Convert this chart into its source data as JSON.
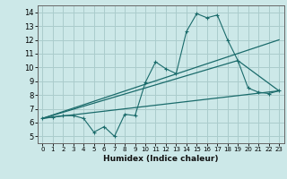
{
  "xlabel": "Humidex (Indice chaleur)",
  "bg_color": "#cce8e8",
  "grid_color": "#aacccc",
  "line_color": "#1a6b6b",
  "xlim": [
    -0.5,
    23.5
  ],
  "ylim": [
    4.5,
    14.5
  ],
  "xticks": [
    0,
    1,
    2,
    3,
    4,
    5,
    6,
    7,
    8,
    9,
    10,
    11,
    12,
    13,
    14,
    15,
    16,
    17,
    18,
    19,
    20,
    21,
    22,
    23
  ],
  "yticks": [
    5,
    6,
    7,
    8,
    9,
    10,
    11,
    12,
    13,
    14
  ],
  "series1_x": [
    0,
    1,
    2,
    3,
    4,
    5,
    6,
    7,
    8,
    9,
    10,
    11,
    12,
    13,
    14,
    15,
    16,
    17,
    18,
    19,
    20,
    21,
    22,
    23
  ],
  "series1_y": [
    6.3,
    6.4,
    6.5,
    6.5,
    6.3,
    5.3,
    5.7,
    5.0,
    6.6,
    6.5,
    8.9,
    10.4,
    9.9,
    9.55,
    12.6,
    13.9,
    13.6,
    13.8,
    12.0,
    10.5,
    8.5,
    8.2,
    8.1,
    8.3
  ],
  "series2_x": [
    0,
    23
  ],
  "series2_y": [
    6.3,
    12.0
  ],
  "series3_x": [
    0,
    23
  ],
  "series3_y": [
    6.3,
    8.3
  ],
  "series4_x": [
    0,
    19,
    23
  ],
  "series4_y": [
    6.3,
    10.5,
    8.3
  ]
}
